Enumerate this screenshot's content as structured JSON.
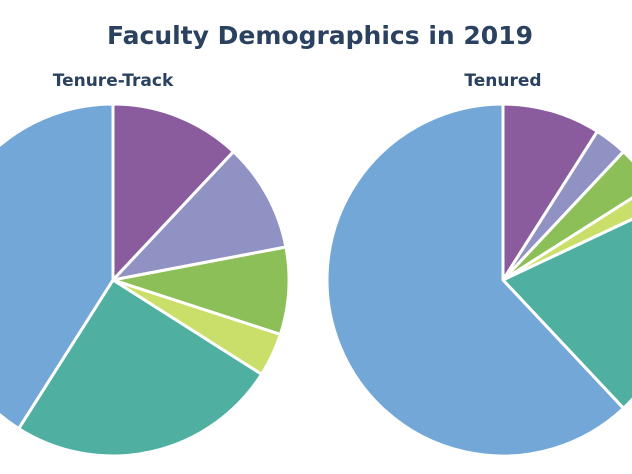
{
  "chart_data": {
    "type": "pie",
    "title": "Faculty Demographics in 2019",
    "title_color": "#2b4160",
    "slice_border_color": "#ffffff",
    "pies": [
      {
        "title": "Tenure-Track",
        "slices": [
          {
            "value": 12,
            "color": "#8a5c9e"
          },
          {
            "value": 10,
            "color": "#9192c4"
          },
          {
            "value": 8,
            "color": "#8cbf57"
          },
          {
            "value": 4,
            "color": "#c9df6a"
          },
          {
            "value": 25,
            "color": "#4fb0a2"
          },
          {
            "value": 41,
            "color": "#72a7d7"
          }
        ]
      },
      {
        "title": "Tenured",
        "slices": [
          {
            "value": 9,
            "color": "#8a5c9e"
          },
          {
            "value": 3,
            "color": "#9192c4"
          },
          {
            "value": 4,
            "color": "#8cbf57"
          },
          {
            "value": 2,
            "color": "#c9df6a"
          },
          {
            "value": 20,
            "color": "#4fb0a2"
          },
          {
            "value": 62,
            "color": "#72a7d7"
          }
        ]
      }
    ]
  }
}
